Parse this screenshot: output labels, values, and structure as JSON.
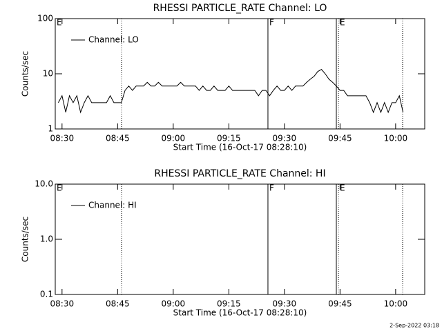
{
  "chart_data": [
    {
      "type": "line",
      "title": "RHESSI PARTICLE_RATE Channel: LO",
      "xlabel": "Start Time (16-Oct-17 08:28:10)",
      "ylabel": "Counts/sec",
      "x": [
        509,
        510,
        511,
        512,
        513,
        514,
        515,
        516,
        517,
        518,
        519,
        520,
        521,
        522,
        523,
        524,
        525,
        526,
        527,
        528,
        529,
        530,
        531,
        532,
        533,
        534,
        535,
        536,
        537,
        538,
        539,
        540,
        541,
        542,
        543,
        544,
        545,
        546,
        547,
        548,
        549,
        550,
        551,
        552,
        553,
        554,
        555,
        556,
        557,
        558,
        559,
        560,
        561,
        562,
        563,
        564,
        565,
        566,
        567,
        568,
        569,
        570,
        571,
        572,
        573,
        574,
        575,
        576,
        577,
        578,
        579,
        580,
        581,
        582,
        583,
        584,
        585,
        586,
        587,
        588,
        589,
        590,
        591,
        592,
        593,
        594,
        595,
        596,
        597,
        598,
        599,
        600,
        601,
        602
      ],
      "series": [
        {
          "name": "Channel: LO",
          "color": "#000000",
          "values": [
            3,
            4,
            2,
            4,
            3,
            4,
            2,
            3,
            4,
            3,
            3,
            3,
            3,
            3,
            4,
            3,
            3,
            3,
            5,
            6,
            5,
            6,
            6,
            6,
            7,
            6,
            6,
            7,
            6,
            6,
            6,
            6,
            6,
            7,
            6,
            6,
            6,
            6,
            5,
            6,
            5,
            5,
            6,
            5,
            5,
            5,
            6,
            5,
            5,
            5,
            5,
            5,
            5,
            5,
            4,
            5,
            5,
            4,
            5,
            6,
            5,
            5,
            6,
            5,
            6,
            6,
            6,
            7,
            8,
            9,
            11,
            12,
            10,
            8,
            7,
            6,
            5,
            5,
            4,
            4,
            4,
            4,
            4,
            4,
            3,
            2,
            3,
            2,
            3,
            2,
            3,
            3,
            4,
            2
          ]
        }
      ],
      "xlim": [
        508.17,
        607.85
      ],
      "xticks": [
        {
          "value": 510,
          "label": "08:30"
        },
        {
          "value": 525,
          "label": "08:45"
        },
        {
          "value": 540,
          "label": "09:00"
        },
        {
          "value": 555,
          "label": "09:15"
        },
        {
          "value": 570,
          "label": "09:30"
        },
        {
          "value": 585,
          "label": "09:45"
        },
        {
          "value": 600,
          "label": "10:00"
        }
      ],
      "ylim": [
        1,
        100
      ],
      "yticks": [
        1,
        10,
        100
      ],
      "log_y": true,
      "legend": "upper left",
      "markers": [
        {
          "x": 508.17,
          "style": "solid",
          "label": "E"
        },
        {
          "x": 526.06,
          "style": "dotted"
        },
        {
          "x": 565.55,
          "style": "solid",
          "label": "F"
        },
        {
          "x": 584.0,
          "style": "solid"
        },
        {
          "x": 584.56,
          "style": "dotted",
          "label": "E"
        },
        {
          "x": 601.89,
          "style": "dotted"
        }
      ]
    },
    {
      "type": "line",
      "title": "RHESSI PARTICLE_RATE Channel: HI",
      "xlabel": "Start Time (16-Oct-17 08:28:10)",
      "ylabel": "Counts/sec",
      "x": [],
      "series": [
        {
          "name": "Channel: HI",
          "color": "#000000",
          "values": []
        }
      ],
      "xlim": [
        508.17,
        607.85
      ],
      "xticks": [
        {
          "value": 510,
          "label": "08:30"
        },
        {
          "value": 525,
          "label": "08:45"
        },
        {
          "value": 540,
          "label": "09:00"
        },
        {
          "value": 555,
          "label": "09:15"
        },
        {
          "value": 570,
          "label": "09:30"
        },
        {
          "value": 585,
          "label": "09:45"
        },
        {
          "value": 600,
          "label": "10:00"
        }
      ],
      "ylim": [
        0.1,
        10
      ],
      "yticks": [
        {
          "value": 0.1,
          "label": "0.1"
        },
        {
          "value": 1,
          "label": "1.0"
        },
        {
          "value": 10,
          "label": "10.0"
        }
      ],
      "log_y": true,
      "legend": "upper left",
      "markers": [
        {
          "x": 508.17,
          "style": "solid",
          "label": "E"
        },
        {
          "x": 526.06,
          "style": "dotted"
        },
        {
          "x": 565.55,
          "style": "solid",
          "label": "F"
        },
        {
          "x": 584.0,
          "style": "solid"
        },
        {
          "x": 584.56,
          "style": "dotted",
          "label": "E"
        },
        {
          "x": 601.89,
          "style": "dotted"
        }
      ]
    }
  ],
  "footer": "2-Sep-2022 03:18"
}
